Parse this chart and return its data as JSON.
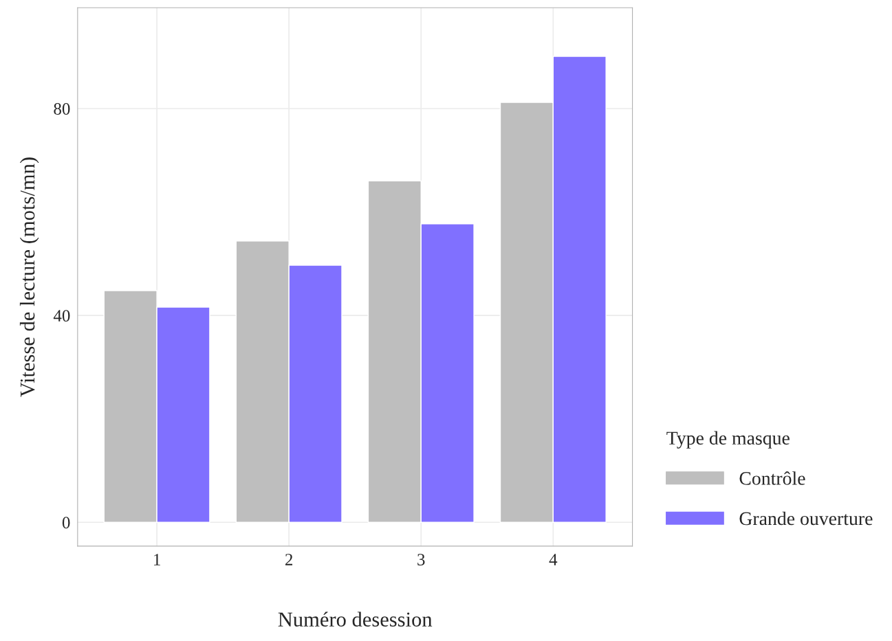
{
  "chart_data": {
    "type": "bar",
    "xlabel": "Numéro desession",
    "ylabel": "Vitesse de lecture (mots/mn)",
    "legend_title": "Type de masque",
    "categories": [
      "1",
      "2",
      "3",
      "4"
    ],
    "series": [
      {
        "name": "Contrôle",
        "color": "#bebebe",
        "values": [
          44.8,
          54.4,
          66.0,
          81.2
        ]
      },
      {
        "name": "Grande ouverture",
        "color": "#8070ff",
        "values": [
          41.6,
          49.7,
          57.7,
          90.1
        ]
      }
    ],
    "ylim": [
      -4.6,
      99.5
    ],
    "yticks": [
      0,
      40,
      80
    ],
    "grid": true,
    "legend": "right"
  }
}
